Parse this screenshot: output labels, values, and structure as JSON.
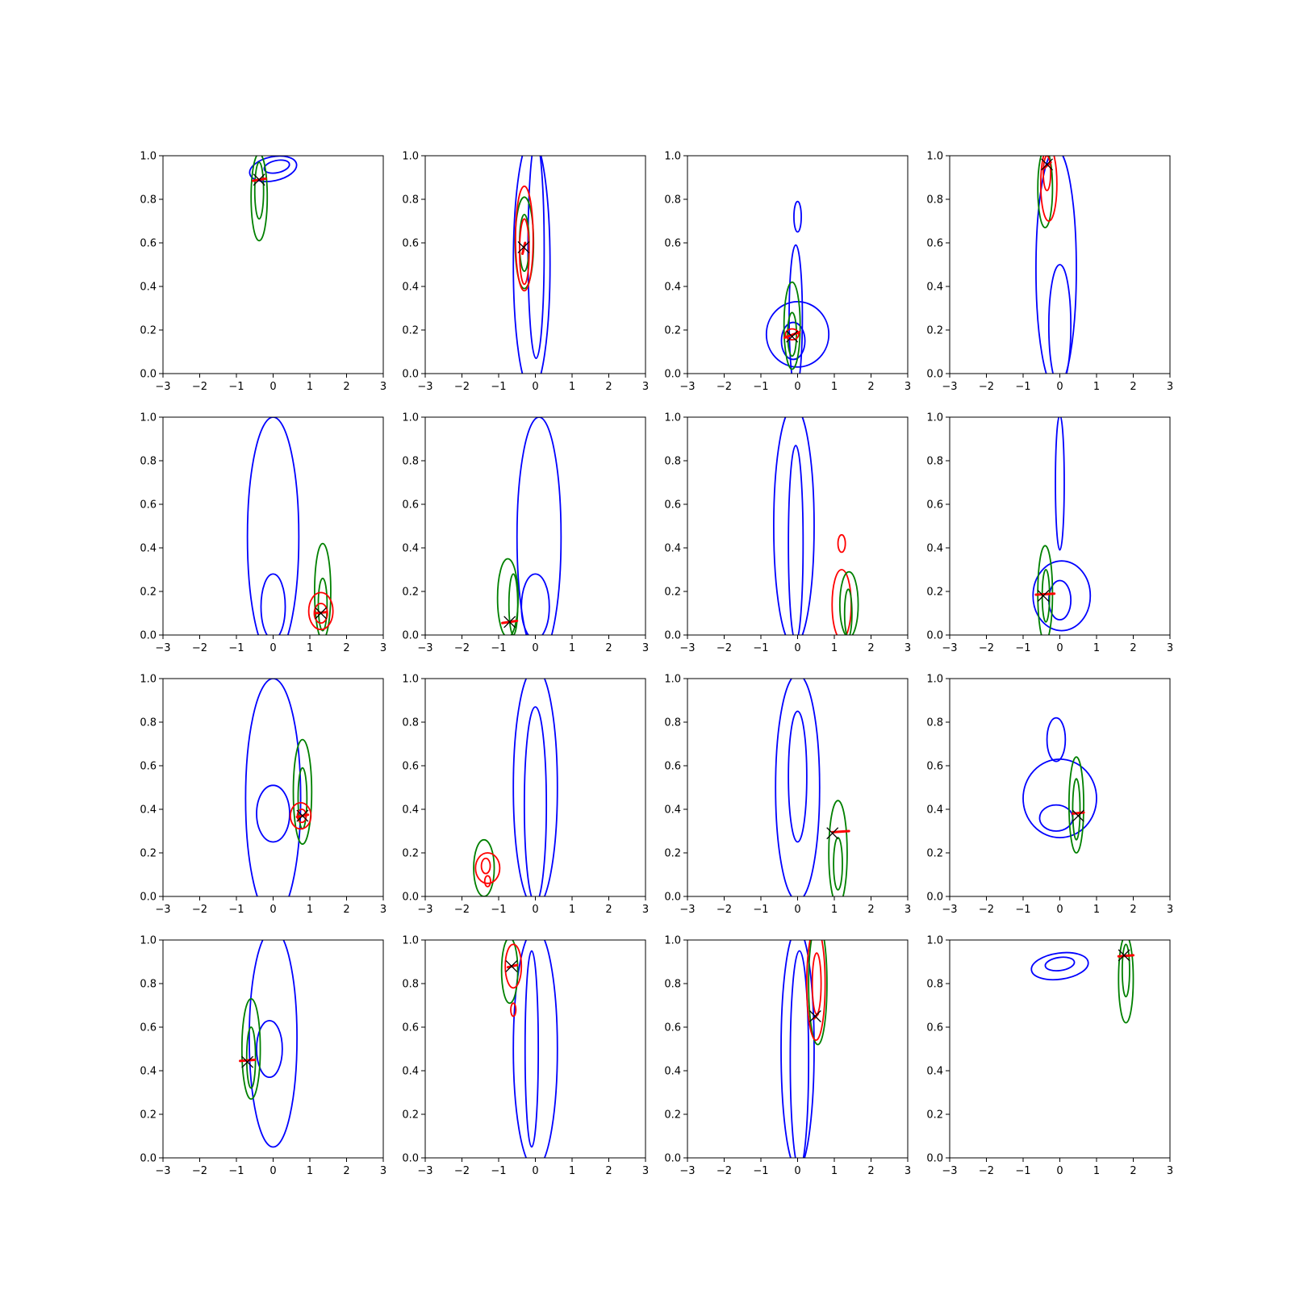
{
  "chart_data": {
    "type": "contour",
    "layout": "4x4 grid",
    "xlim": [
      -3,
      3
    ],
    "ylim": [
      0,
      1
    ],
    "xticks": [
      "−3",
      "−2",
      "−1",
      "0",
      "1",
      "2",
      "3"
    ],
    "yticks": [
      "0.0",
      "0.2",
      "0.4",
      "0.6",
      "0.8",
      "1.0"
    ],
    "x_tick_values": [
      -3,
      -2,
      -1,
      0,
      1,
      2,
      3
    ],
    "y_tick_values": [
      0,
      0.2,
      0.4,
      0.6,
      0.8,
      1.0
    ],
    "grid": false,
    "colors": {
      "blue": "#0000ff",
      "green": "#008000",
      "red": "#ff0000",
      "marker": "#000000"
    },
    "panels": [
      {
        "contours": [
          {
            "color": "blue",
            "center": [
              0.0,
              0.94
            ],
            "rx": 0.65,
            "ry": 0.055,
            "rot": -12
          },
          {
            "color": "blue",
            "center": [
              0.1,
              0.95
            ],
            "rx": 0.35,
            "ry": 0.028,
            "rot": -12
          },
          {
            "color": "green",
            "center": [
              -0.38,
              0.81
            ],
            "rx": 0.22,
            "ry": 0.2
          },
          {
            "color": "green",
            "center": [
              -0.38,
              0.84
            ],
            "rx": 0.12,
            "ry": 0.13
          }
        ],
        "x_marker": [
          -0.38,
          0.89
        ],
        "red_marker": [
          [
            -0.55,
            0.885
          ],
          [
            -0.2,
            0.895
          ]
        ]
      },
      {
        "contours": [
          {
            "color": "blue",
            "center": [
              -0.1,
              0.5
            ],
            "rx": 0.5,
            "ry": 0.58
          },
          {
            "color": "blue",
            "center": [
              0.02,
              0.57
            ],
            "rx": 0.22,
            "ry": 0.5
          },
          {
            "color": "green",
            "center": [
              -0.3,
              0.6
            ],
            "rx": 0.25,
            "ry": 0.21
          },
          {
            "color": "green",
            "center": [
              -0.3,
              0.6
            ],
            "rx": 0.13,
            "ry": 0.13
          },
          {
            "color": "red",
            "center": [
              -0.3,
              0.62
            ],
            "rx": 0.24,
            "ry": 0.24
          },
          {
            "color": "red",
            "center": [
              -0.3,
              0.56
            ],
            "rx": 0.13,
            "ry": 0.15
          }
        ],
        "x_marker": [
          -0.32,
          0.58
        ],
        "red_marker": [
          [
            -0.35,
            0.55
          ],
          [
            -0.28,
            0.6
          ]
        ]
      },
      {
        "contours": [
          {
            "color": "blue",
            "center": [
              0.0,
              0.72
            ],
            "rx": 0.1,
            "ry": 0.07
          },
          {
            "color": "blue",
            "center": [
              -0.05,
              0.26
            ],
            "rx": 0.18,
            "ry": 0.33
          },
          {
            "color": "blue",
            "center": [
              0.0,
              0.18
            ],
            "rx": 0.85,
            "ry": 0.15
          },
          {
            "color": "blue",
            "center": [
              -0.12,
              0.15
            ],
            "rx": 0.32,
            "ry": 0.085
          },
          {
            "color": "green",
            "center": [
              -0.15,
              0.22
            ],
            "rx": 0.22,
            "ry": 0.2
          },
          {
            "color": "green",
            "center": [
              -0.15,
              0.18
            ],
            "rx": 0.12,
            "ry": 0.1
          },
          {
            "color": "red",
            "center": [
              -0.15,
              0.18
            ],
            "rx": 0.18,
            "ry": 0.025
          }
        ],
        "x_marker": [
          -0.15,
          0.17
        ],
        "red_marker": [
          [
            -0.35,
            0.165
          ],
          [
            0.05,
            0.19
          ]
        ]
      },
      {
        "contours": [
          {
            "color": "blue",
            "center": [
              -0.1,
              0.48
            ],
            "rx": 0.55,
            "ry": 0.55
          },
          {
            "color": "blue",
            "center": [
              0.0,
              0.22
            ],
            "rx": 0.3,
            "ry": 0.28
          },
          {
            "color": "green",
            "center": [
              -0.4,
              0.85
            ],
            "rx": 0.2,
            "ry": 0.18
          },
          {
            "color": "red",
            "center": [
              -0.3,
              0.87
            ],
            "rx": 0.22,
            "ry": 0.17
          },
          {
            "color": "red",
            "center": [
              -0.35,
              0.92
            ],
            "rx": 0.1,
            "ry": 0.08
          }
        ],
        "x_marker": [
          -0.35,
          0.96
        ],
        "red_marker": [
          [
            -0.45,
            0.94
          ],
          [
            -0.25,
            0.97
          ]
        ]
      },
      {
        "contours": [
          {
            "color": "blue",
            "center": [
              0.0,
              0.45
            ],
            "rx": 0.7,
            "ry": 0.55
          },
          {
            "color": "blue",
            "center": [
              0.0,
              0.13
            ],
            "rx": 0.33,
            "ry": 0.15
          },
          {
            "color": "green",
            "center": [
              1.35,
              0.2
            ],
            "rx": 0.22,
            "ry": 0.22
          },
          {
            "color": "green",
            "center": [
              1.35,
              0.14
            ],
            "rx": 0.12,
            "ry": 0.12
          },
          {
            "color": "red",
            "center": [
              1.3,
              0.11
            ],
            "rx": 0.33,
            "ry": 0.085
          },
          {
            "color": "red",
            "center": [
              1.3,
              0.1
            ],
            "rx": 0.18,
            "ry": 0.045
          }
        ],
        "x_marker": [
          1.3,
          0.1
        ],
        "red_marker": [
          [
            1.15,
            0.1
          ],
          [
            1.45,
            0.105
          ]
        ]
      },
      {
        "contours": [
          {
            "color": "blue",
            "center": [
              0.1,
              0.45
            ],
            "rx": 0.6,
            "ry": 0.55
          },
          {
            "color": "blue",
            "center": [
              0.0,
              0.13
            ],
            "rx": 0.38,
            "ry": 0.15
          },
          {
            "color": "green",
            "center": [
              -0.75,
              0.17
            ],
            "rx": 0.28,
            "ry": 0.18
          },
          {
            "color": "green",
            "center": [
              -0.6,
              0.14
            ],
            "rx": 0.12,
            "ry": 0.14
          }
        ],
        "x_marker": [
          -0.7,
          0.06
        ],
        "red_marker": [
          [
            -0.9,
            0.055
          ],
          [
            -0.5,
            0.065
          ]
        ]
      },
      {
        "contours": [
          {
            "color": "blue",
            "center": [
              -0.1,
              0.5
            ],
            "rx": 0.55,
            "ry": 0.55
          },
          {
            "color": "blue",
            "center": [
              -0.05,
              0.42
            ],
            "rx": 0.2,
            "ry": 0.45
          },
          {
            "color": "red",
            "center": [
              1.2,
              0.42
            ],
            "rx": 0.1,
            "ry": 0.04
          },
          {
            "color": "red",
            "center": [
              1.2,
              0.14
            ],
            "rx": 0.26,
            "ry": 0.16
          },
          {
            "color": "green",
            "center": [
              1.4,
              0.14
            ],
            "rx": 0.25,
            "ry": 0.15
          },
          {
            "color": "green",
            "center": [
              1.38,
              0.1
            ],
            "rx": 0.1,
            "ry": 0.11
          }
        ]
      },
      {
        "contours": [
          {
            "color": "blue",
            "center": [
              0.0,
              0.7
            ],
            "rx": 0.12,
            "ry": 0.31
          },
          {
            "color": "blue",
            "center": [
              0.05,
              0.18
            ],
            "rx": 0.78,
            "ry": 0.16
          },
          {
            "color": "blue",
            "center": [
              0.0,
              0.16
            ],
            "rx": 0.3,
            "ry": 0.09
          },
          {
            "color": "green",
            "center": [
              -0.4,
              0.19
            ],
            "rx": 0.2,
            "ry": 0.22
          },
          {
            "color": "green",
            "center": [
              -0.38,
              0.18
            ],
            "rx": 0.1,
            "ry": 0.12
          }
        ],
        "x_marker": [
          -0.45,
          0.18
        ],
        "red_marker": [
          [
            -0.65,
            0.185
          ],
          [
            -0.15,
            0.19
          ]
        ]
      },
      {
        "contours": [
          {
            "color": "blue",
            "center": [
              0.0,
              0.45
            ],
            "rx": 0.75,
            "ry": 0.55
          },
          {
            "color": "blue",
            "center": [
              0.0,
              0.38
            ],
            "rx": 0.45,
            "ry": 0.13
          },
          {
            "color": "green",
            "center": [
              0.8,
              0.48
            ],
            "rx": 0.25,
            "ry": 0.24
          },
          {
            "color": "green",
            "center": [
              0.8,
              0.45
            ],
            "rx": 0.12,
            "ry": 0.14
          },
          {
            "color": "red",
            "center": [
              0.75,
              0.37
            ],
            "rx": 0.28,
            "ry": 0.06
          },
          {
            "color": "red",
            "center": [
              0.78,
              0.37
            ],
            "rx": 0.12,
            "ry": 0.03
          }
        ],
        "x_marker": [
          0.8,
          0.37
        ],
        "red_marker": [
          [
            0.65,
            0.365
          ],
          [
            0.95,
            0.375
          ]
        ]
      },
      {
        "contours": [
          {
            "color": "blue",
            "center": [
              0.0,
              0.5
            ],
            "rx": 0.6,
            "ry": 0.55
          },
          {
            "color": "blue",
            "center": [
              0.0,
              0.42
            ],
            "rx": 0.3,
            "ry": 0.45
          },
          {
            "color": "green",
            "center": [
              -1.4,
              0.13
            ],
            "rx": 0.28,
            "ry": 0.13
          },
          {
            "color": "red",
            "center": [
              -1.3,
              0.13
            ],
            "rx": 0.33,
            "ry": 0.07
          },
          {
            "color": "red",
            "center": [
              -1.35,
              0.14
            ],
            "rx": 0.12,
            "ry": 0.035
          },
          {
            "color": "red",
            "center": [
              -1.3,
              0.07
            ],
            "rx": 0.08,
            "ry": 0.025
          }
        ]
      },
      {
        "contours": [
          {
            "color": "blue",
            "center": [
              0.0,
              0.5
            ],
            "rx": 0.6,
            "ry": 0.52
          },
          {
            "color": "blue",
            "center": [
              0.0,
              0.55
            ],
            "rx": 0.25,
            "ry": 0.3
          },
          {
            "color": "green",
            "center": [
              1.1,
              0.2
            ],
            "rx": 0.25,
            "ry": 0.24
          },
          {
            "color": "green",
            "center": [
              1.1,
              0.15
            ],
            "rx": 0.12,
            "ry": 0.12
          }
        ],
        "x_marker": [
          0.95,
          0.29
        ],
        "red_marker": [
          [
            0.95,
            0.295
          ],
          [
            1.4,
            0.3
          ]
        ]
      },
      {
        "contours": [
          {
            "color": "blue",
            "center": [
              0.0,
              0.45
            ],
            "rx": 1.0,
            "ry": 0.18
          },
          {
            "color": "blue",
            "center": [
              -0.1,
              0.72
            ],
            "rx": 0.25,
            "ry": 0.1
          },
          {
            "color": "blue",
            "center": [
              -0.1,
              0.36
            ],
            "rx": 0.45,
            "ry": 0.06
          },
          {
            "color": "green",
            "center": [
              0.45,
              0.42
            ],
            "rx": 0.2,
            "ry": 0.22
          },
          {
            "color": "green",
            "center": [
              0.45,
              0.4
            ],
            "rx": 0.1,
            "ry": 0.14
          }
        ],
        "x_marker": [
          0.5,
          0.37
        ],
        "red_marker": [
          [
            0.35,
            0.38
          ],
          [
            0.65,
            0.385
          ]
        ]
      },
      {
        "contours": [
          {
            "color": "blue",
            "center": [
              0.0,
              0.55
            ],
            "rx": 0.65,
            "ry": 0.5
          },
          {
            "color": "blue",
            "center": [
              -0.1,
              0.5
            ],
            "rx": 0.35,
            "ry": 0.13
          },
          {
            "color": "green",
            "center": [
              -0.6,
              0.5
            ],
            "rx": 0.25,
            "ry": 0.23
          },
          {
            "color": "green",
            "center": [
              -0.6,
              0.46
            ],
            "rx": 0.12,
            "ry": 0.14
          }
        ],
        "x_marker": [
          -0.7,
          0.44
        ],
        "red_marker": [
          [
            -0.9,
            0.445
          ],
          [
            -0.5,
            0.45
          ]
        ]
      },
      {
        "contours": [
          {
            "color": "blue",
            "center": [
              0.0,
              0.5
            ],
            "rx": 0.6,
            "ry": 0.55
          },
          {
            "color": "blue",
            "center": [
              -0.1,
              0.5
            ],
            "rx": 0.18,
            "ry": 0.45
          },
          {
            "color": "green",
            "center": [
              -0.7,
              0.86
            ],
            "rx": 0.22,
            "ry": 0.15
          },
          {
            "color": "red",
            "center": [
              -0.6,
              0.88
            ],
            "rx": 0.22,
            "ry": 0.1
          },
          {
            "color": "red",
            "center": [
              -0.6,
              0.68
            ],
            "rx": 0.07,
            "ry": 0.03
          }
        ],
        "x_marker": [
          -0.65,
          0.88
        ],
        "red_marker": [
          [
            -0.75,
            0.875
          ],
          [
            -0.5,
            0.885
          ]
        ]
      },
      {
        "contours": [
          {
            "color": "blue",
            "center": [
              0.0,
              0.5
            ],
            "rx": 0.45,
            "ry": 0.55
          },
          {
            "color": "blue",
            "center": [
              0.05,
              0.45
            ],
            "rx": 0.25,
            "ry": 0.5
          },
          {
            "color": "green",
            "center": [
              0.55,
              0.8
            ],
            "rx": 0.25,
            "ry": 0.28
          },
          {
            "color": "red",
            "center": [
              0.5,
              0.8
            ],
            "rx": 0.25,
            "ry": 0.26
          },
          {
            "color": "red",
            "center": [
              0.52,
              0.8
            ],
            "rx": 0.12,
            "ry": 0.14
          }
        ],
        "x_marker": [
          0.48,
          0.65
        ],
        "red_marker": [
          [
            0.45,
            0.64
          ],
          [
            0.55,
            0.66
          ]
        ]
      },
      {
        "contours": [
          {
            "color": "blue",
            "center": [
              0.0,
              0.88
            ],
            "rx": 0.78,
            "ry": 0.06,
            "rot": -8
          },
          {
            "color": "blue",
            "center": [
              0.0,
              0.89
            ],
            "rx": 0.4,
            "ry": 0.03,
            "rot": -8
          },
          {
            "color": "green",
            "center": [
              1.8,
              0.82
            ],
            "rx": 0.2,
            "ry": 0.2
          },
          {
            "color": "green",
            "center": [
              1.8,
              0.86
            ],
            "rx": 0.1,
            "ry": 0.12
          }
        ],
        "x_marker": [
          1.75,
          0.93
        ],
        "red_marker": [
          [
            1.6,
            0.925
          ],
          [
            2.0,
            0.93
          ]
        ]
      }
    ]
  }
}
